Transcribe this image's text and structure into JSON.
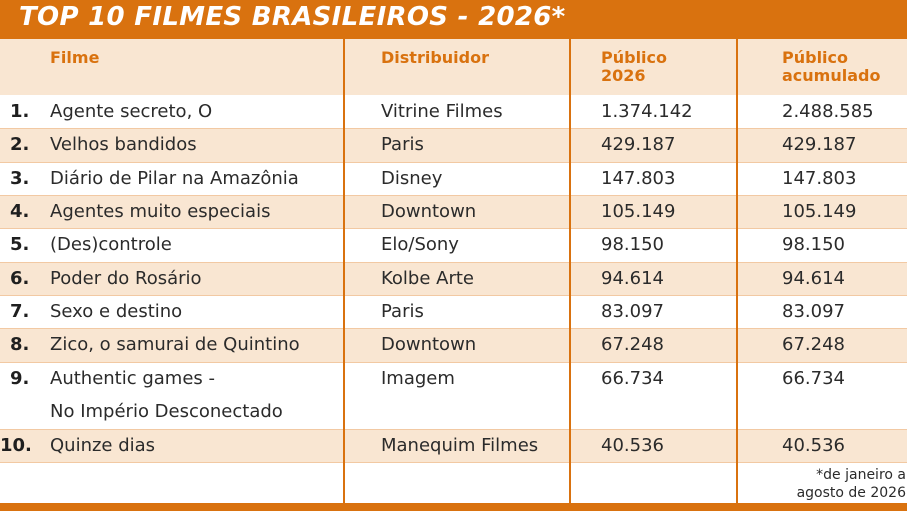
{
  "title": "TOP 10 FILMES BRASILEIROS - 2026*",
  "columns": {
    "filme": "Filme",
    "distribuidor": "Distribuidor",
    "publico_2026": [
      "Público",
      "2026"
    ],
    "publico_acumulado": [
      "Público",
      "acumulado"
    ]
  },
  "rows": [
    {
      "rank": "1.",
      "filme": "Agente secreto, O",
      "distribuidor": "Vitrine Filmes",
      "publico_2026": "1.374.142",
      "acumulado": "2.488.585"
    },
    {
      "rank": "2.",
      "filme": "Velhos bandidos",
      "distribuidor": "Paris",
      "publico_2026": "429.187",
      "acumulado": "429.187"
    },
    {
      "rank": "3.",
      "filme": "Diário de Pilar na Amazônia",
      "distribuidor": "Disney",
      "publico_2026": "147.803",
      "acumulado": "147.803"
    },
    {
      "rank": "4.",
      "filme": "Agentes muito especiais",
      "distribuidor": "Downtown",
      "publico_2026": "105.149",
      "acumulado": "105.149"
    },
    {
      "rank": "5.",
      "filme": "(Des)controle",
      "distribuidor": "Elo/Sony",
      "publico_2026": "98.150",
      "acumulado": "98.150"
    },
    {
      "rank": "6.",
      "filme": "Poder do Rosário",
      "distribuidor": "Kolbe Arte",
      "publico_2026": "94.614",
      "acumulado": "94.614"
    },
    {
      "rank": "7.",
      "filme": "Sexo e destino",
      "distribuidor": "Paris",
      "publico_2026": "83.097",
      "acumulado": "83.097"
    },
    {
      "rank": "8.",
      "filme": "Zico, o samurai de Quintino",
      "distribuidor": "Downtown",
      "publico_2026": "67.248",
      "acumulado": "67.248"
    },
    {
      "rank": "9.",
      "filme": "Authentic games -",
      "filme_line2": "No Império Desconectado",
      "distribuidor": "Imagem",
      "publico_2026": "66.734",
      "acumulado": "66.734"
    },
    {
      "rank": "10.",
      "filme": "Quinze dias",
      "distribuidor": "Manequim Filmes",
      "publico_2026": "40.536",
      "acumulado": "40.536"
    }
  ],
  "footnote": [
    "*de janeiro a",
    "agosto de 2026"
  ],
  "colors": {
    "accent": "#d9720f",
    "band": "#f9e6d2",
    "text": "#2b2b2b"
  }
}
